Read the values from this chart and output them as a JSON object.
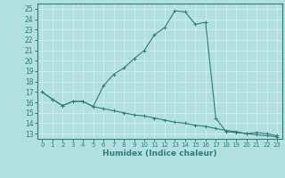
{
  "xlabel": "Humidex (Indice chaleur)",
  "background_color": "#b2e0e0",
  "grid_color": "#d0ecec",
  "line_color": "#2e7d7d",
  "xlim": [
    -0.5,
    23.5
  ],
  "ylim": [
    12.5,
    25.5
  ],
  "xticks": [
    0,
    1,
    2,
    3,
    4,
    5,
    6,
    7,
    8,
    9,
    10,
    11,
    12,
    13,
    14,
    15,
    16,
    17,
    18,
    19,
    20,
    21,
    22,
    23
  ],
  "yticks": [
    13,
    14,
    15,
    16,
    17,
    18,
    19,
    20,
    21,
    22,
    23,
    24,
    25
  ],
  "line1_x": [
    0,
    1,
    2,
    3,
    4,
    5,
    6,
    7,
    8,
    9,
    10,
    11,
    12,
    13,
    14,
    15,
    16,
    17,
    18,
    19,
    20,
    21,
    22,
    23
  ],
  "line1_y": [
    17.0,
    16.3,
    15.7,
    16.1,
    16.1,
    15.6,
    17.6,
    18.7,
    19.3,
    20.2,
    21.0,
    22.5,
    23.2,
    24.8,
    24.7,
    23.5,
    23.7,
    14.5,
    13.2,
    13.1,
    13.0,
    13.1,
    13.0,
    12.8
  ],
  "line2_x": [
    0,
    1,
    2,
    3,
    4,
    5,
    6,
    7,
    8,
    9,
    10,
    11,
    12,
    13,
    14,
    15,
    16,
    17,
    18,
    19,
    20,
    21,
    22,
    23
  ],
  "line2_y": [
    17.0,
    16.3,
    15.7,
    16.1,
    16.1,
    15.6,
    15.4,
    15.2,
    15.0,
    14.8,
    14.7,
    14.5,
    14.3,
    14.1,
    14.0,
    13.8,
    13.7,
    13.5,
    13.3,
    13.2,
    13.0,
    12.9,
    12.8,
    12.7
  ]
}
